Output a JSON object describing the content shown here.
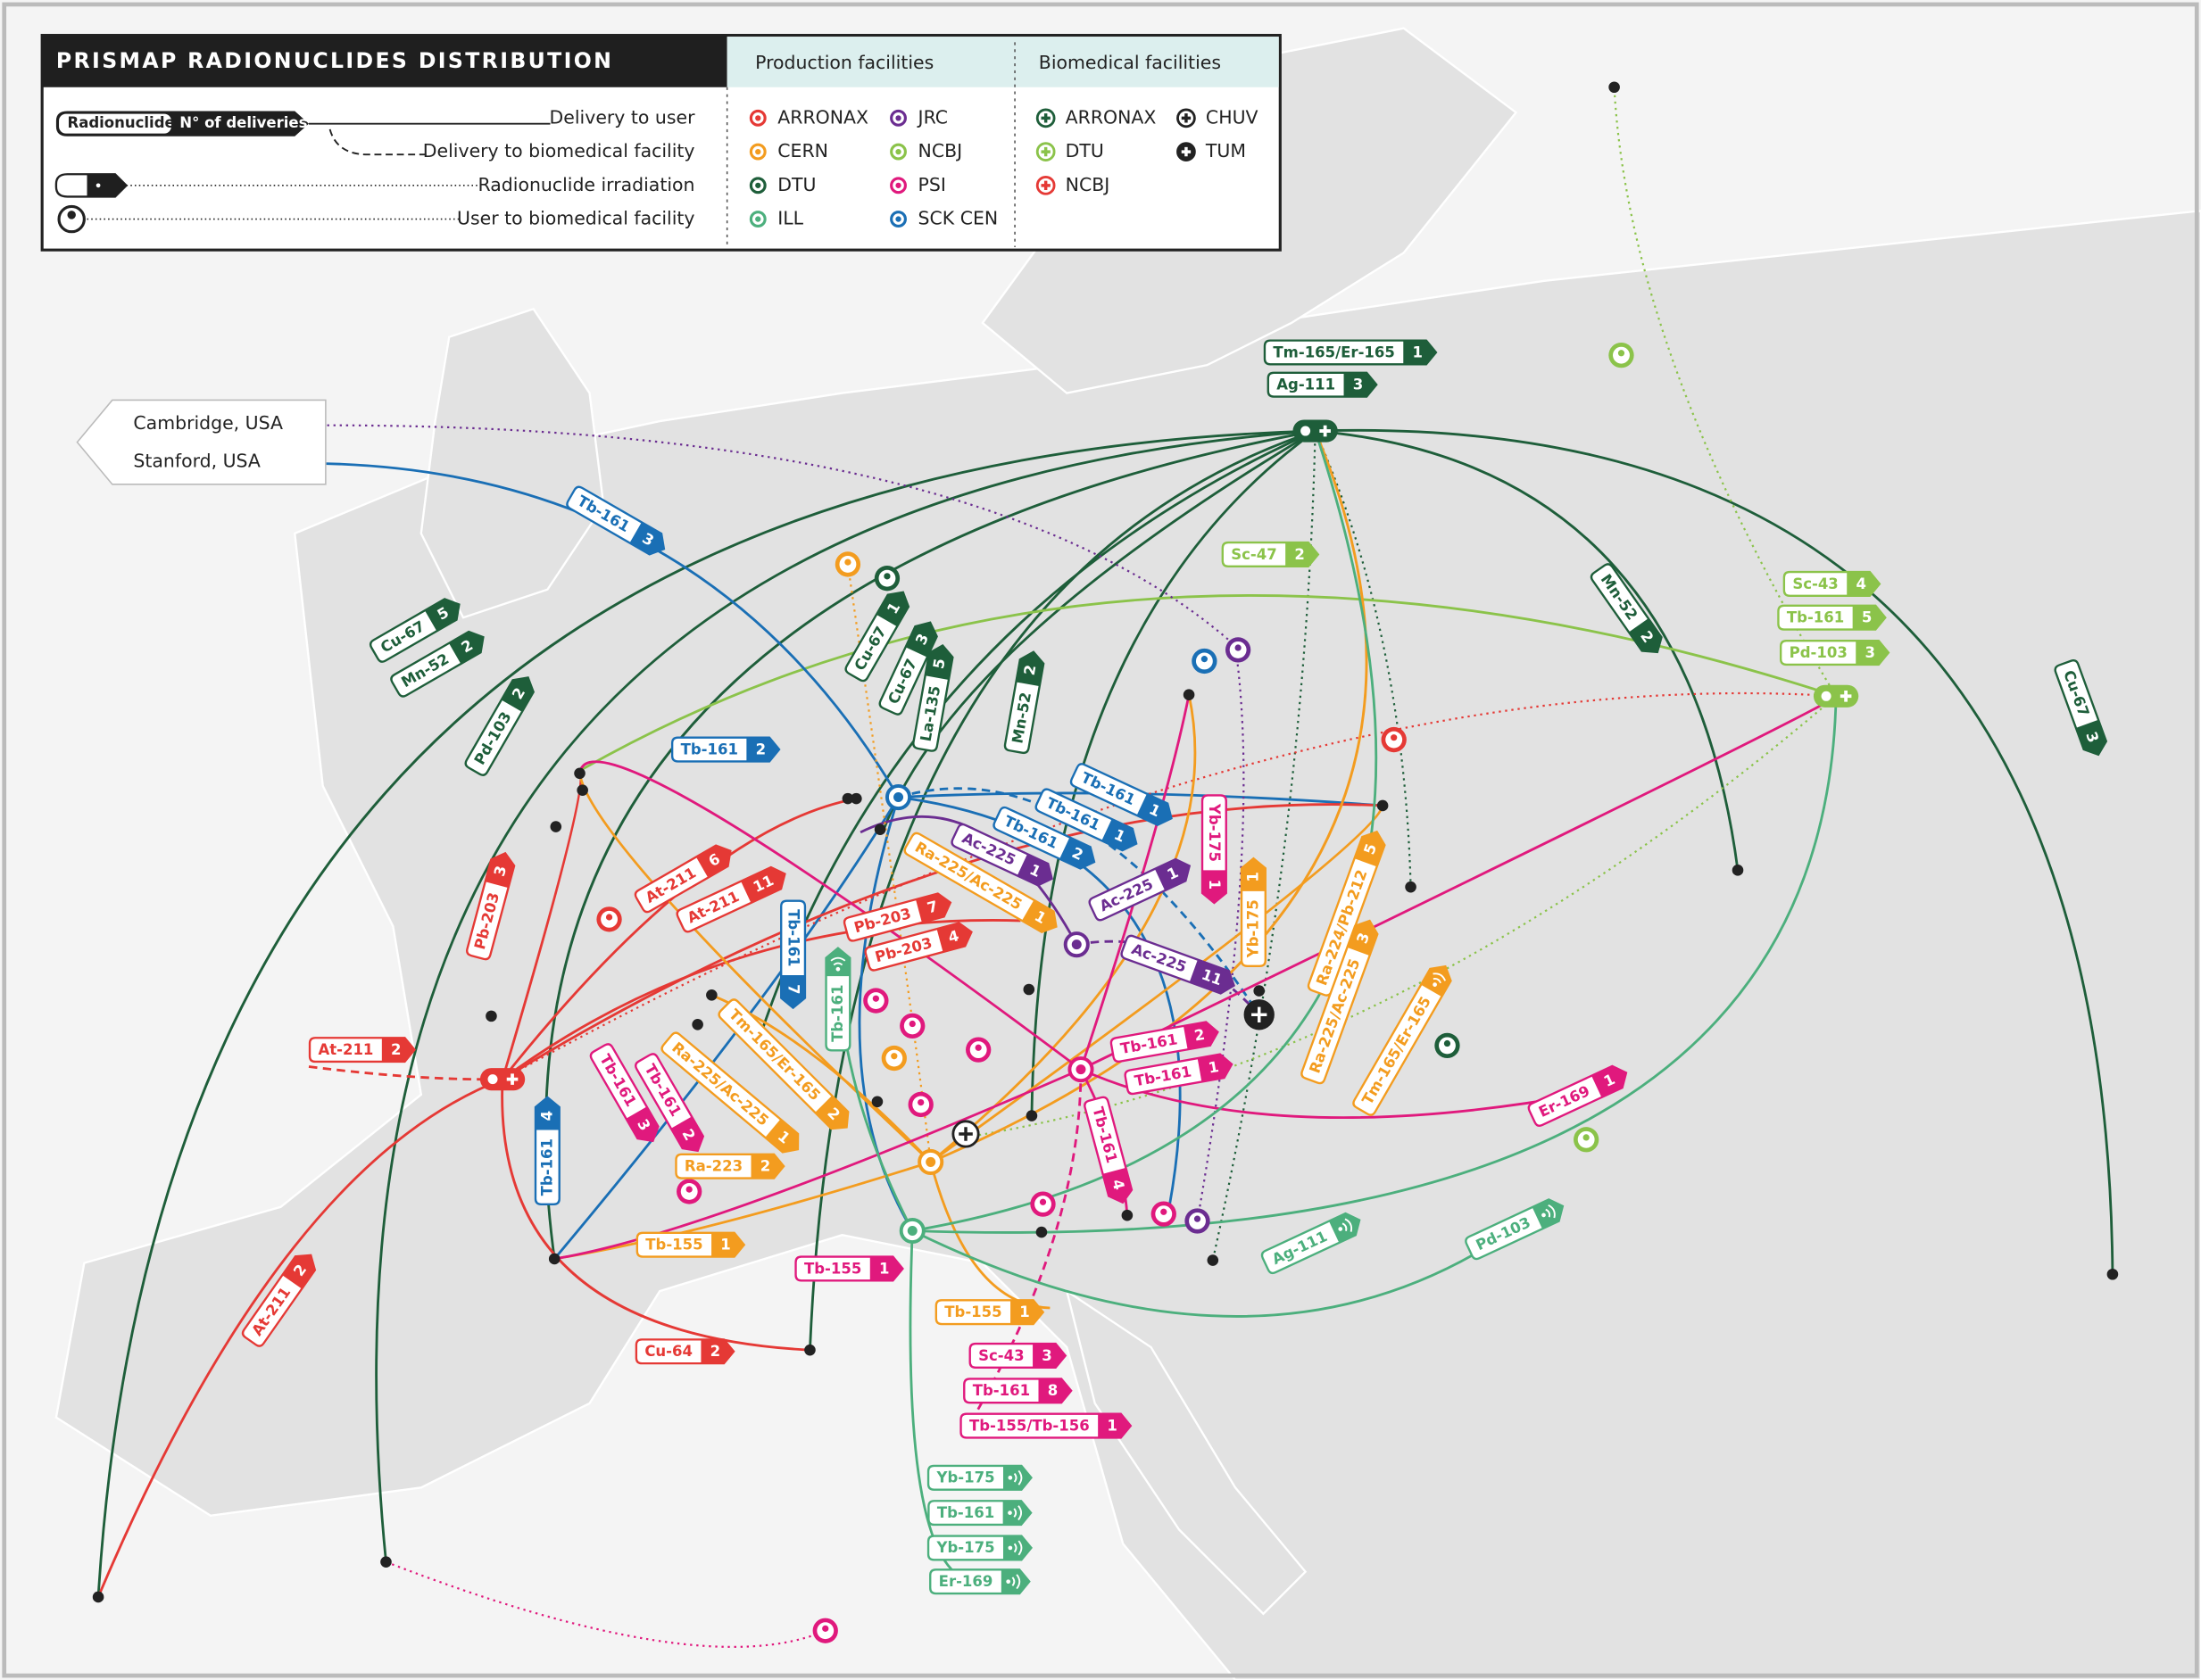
{
  "header": {
    "title": "PRISMAP RADIONUCLIDES DISTRIBUTION"
  },
  "legend": {
    "sample_tag": {
      "radionuclide": "Radionuclide",
      "deliveries": "N° of deliveries"
    },
    "lines": [
      "Delivery to user",
      "Delivery to biomedical facility",
      "Radionuclide irradiation",
      "User to biomedical facility"
    ]
  },
  "production": {
    "title": "Production facilities",
    "items": [
      {
        "name": "ARRONAX",
        "color": "#e53935"
      },
      {
        "name": "CERN",
        "color": "#f39c1f"
      },
      {
        "name": "DTU",
        "color": "#1e5e3a"
      },
      {
        "name": "ILL",
        "color": "#4caf7d"
      },
      {
        "name": "JRC",
        "color": "#6b2d91"
      },
      {
        "name": "NCBJ",
        "color": "#8bc34a"
      },
      {
        "name": "PSI",
        "color": "#e0197d"
      },
      {
        "name": "SCK CEN",
        "color": "#1a6fb5"
      }
    ]
  },
  "biomedical": {
    "title": "Biomedical facilities",
    "items": [
      {
        "name": "ARRONAX",
        "color": "#1e5e3a"
      },
      {
        "name": "DTU",
        "color": "#8bc34a"
      },
      {
        "name": "NCBJ",
        "color": "#e53935"
      },
      {
        "name": "CHUV",
        "color": "#222222"
      },
      {
        "name": "TUM",
        "color": "#222222"
      }
    ]
  },
  "external_users": [
    "Cambridge, USA",
    "Stanford, USA"
  ],
  "deliveries": [
    {
      "nuclide": "Tm-165/Er-165",
      "count": 1,
      "color": "#1e5e3a"
    },
    {
      "nuclide": "Ag-111",
      "count": 3,
      "color": "#1e5e3a"
    },
    {
      "nuclide": "Cu-67",
      "count": 5,
      "color": "#1e5e3a"
    },
    {
      "nuclide": "Mn-52",
      "count": 2,
      "color": "#1e5e3a"
    },
    {
      "nuclide": "Pd-103",
      "count": 2,
      "color": "#1e5e3a"
    },
    {
      "nuclide": "Cu-67",
      "count": 1,
      "color": "#1e5e3a"
    },
    {
      "nuclide": "Cu-67",
      "count": 3,
      "color": "#1e5e3a"
    },
    {
      "nuclide": "La-135",
      "count": 5,
      "color": "#1e5e3a"
    },
    {
      "nuclide": "Mn-52",
      "count": 2,
      "color": "#1e5e3a"
    },
    {
      "nuclide": "Mn-52",
      "count": 2,
      "color": "#1e5e3a"
    },
    {
      "nuclide": "Cu-67",
      "count": 3,
      "color": "#1e5e3a"
    },
    {
      "nuclide": "Sc-47",
      "count": 2,
      "color": "#8bc34a"
    },
    {
      "nuclide": "Sc-43",
      "count": 4,
      "color": "#8bc34a"
    },
    {
      "nuclide": "Tb-161",
      "count": 5,
      "color": "#8bc34a"
    },
    {
      "nuclide": "Pd-103",
      "count": 3,
      "color": "#8bc34a"
    },
    {
      "nuclide": "Tb-161",
      "count": 3,
      "color": "#1a6fb5"
    },
    {
      "nuclide": "Tb-161",
      "count": 2,
      "color": "#1a6fb5"
    },
    {
      "nuclide": "Tb-161",
      "count": 1,
      "color": "#1a6fb5"
    },
    {
      "nuclide": "Tb-161",
      "count": 1,
      "color": "#1a6fb5"
    },
    {
      "nuclide": "Tb-161",
      "count": 2,
      "color": "#1a6fb5"
    },
    {
      "nuclide": "Tb-161",
      "count": 7,
      "color": "#1a6fb5"
    },
    {
      "nuclide": "Tb-161",
      "count": 4,
      "color": "#1a6fb5"
    },
    {
      "nuclide": "Ac-225",
      "count": 1,
      "color": "#6b2d91"
    },
    {
      "nuclide": "Ac-225",
      "count": 1,
      "color": "#6b2d91"
    },
    {
      "nuclide": "Ac-225",
      "count": 11,
      "color": "#6b2d91"
    },
    {
      "nuclide": "Pb-203",
      "count": 3,
      "color": "#e53935"
    },
    {
      "nuclide": "At-211",
      "count": 6,
      "color": "#e53935"
    },
    {
      "nuclide": "At-211",
      "count": 11,
      "color": "#e53935"
    },
    {
      "nuclide": "Pb-203",
      "count": 7,
      "color": "#e53935"
    },
    {
      "nuclide": "Pb-203",
      "count": 4,
      "color": "#e53935"
    },
    {
      "nuclide": "At-211",
      "count": 2,
      "color": "#e53935"
    },
    {
      "nuclide": "At-211",
      "count": 2,
      "color": "#e53935"
    },
    {
      "nuclide": "Cu-64",
      "count": 2,
      "color": "#e53935"
    },
    {
      "nuclide": "Ra-225/Ac-225",
      "count": 1,
      "color": "#f39c1f"
    },
    {
      "nuclide": "Yb-175",
      "count": 1,
      "color": "#f39c1f"
    },
    {
      "nuclide": "Ra-224/Pb-212",
      "count": 5,
      "color": "#f39c1f"
    },
    {
      "nuclide": "Ra-225/Ac-225",
      "count": 3,
      "color": "#f39c1f"
    },
    {
      "nuclide": "Tm-165/Er-165",
      "irradiation": true,
      "color": "#f39c1f"
    },
    {
      "nuclide": "Tm-165/Er-165",
      "count": 2,
      "color": "#f39c1f"
    },
    {
      "nuclide": "Ra-225/Ac-225",
      "count": 1,
      "color": "#f39c1f"
    },
    {
      "nuclide": "Ra-223",
      "count": 2,
      "color": "#f39c1f"
    },
    {
      "nuclide": "Tb-155",
      "count": 1,
      "color": "#f39c1f"
    },
    {
      "nuclide": "Tb-155",
      "count": 1,
      "color": "#f39c1f"
    },
    {
      "nuclide": "Yb-175",
      "count": 1,
      "color": "#e0197d"
    },
    {
      "nuclide": "Tb-161",
      "count": 2,
      "color": "#e0197d"
    },
    {
      "nuclide": "Tb-161",
      "count": 1,
      "color": "#e0197d"
    },
    {
      "nuclide": "Tb-161",
      "count": 3,
      "color": "#e0197d"
    },
    {
      "nuclide": "Tb-161",
      "count": 2,
      "color": "#e0197d"
    },
    {
      "nuclide": "Tb-161",
      "count": 4,
      "color": "#e0197d"
    },
    {
      "nuclide": "Tb-155",
      "count": 1,
      "color": "#e0197d"
    },
    {
      "nuclide": "Er-169",
      "count": 1,
      "color": "#e0197d"
    },
    {
      "nuclide": "Sc-43",
      "count": 3,
      "color": "#e0197d"
    },
    {
      "nuclide": "Tb-161",
      "count": 8,
      "color": "#e0197d"
    },
    {
      "nuclide": "Tb-155/Tb-156",
      "count": 1,
      "color": "#e0197d"
    },
    {
      "nuclide": "Tb-161",
      "irradiation": true,
      "color": "#4caf7d"
    },
    {
      "nuclide": "Ag-111",
      "irradiation": true,
      "color": "#4caf7d"
    },
    {
      "nuclide": "Pd-103",
      "irradiation": true,
      "color": "#4caf7d"
    },
    {
      "nuclide": "Yb-175",
      "irradiation": true,
      "color": "#4caf7d"
    },
    {
      "nuclide": "Tb-161",
      "irradiation": true,
      "color": "#4caf7d"
    },
    {
      "nuclide": "Yb-175",
      "irradiation": true,
      "color": "#4caf7d"
    },
    {
      "nuclide": "Er-169",
      "irradiation": true,
      "color": "#4caf7d"
    }
  ]
}
